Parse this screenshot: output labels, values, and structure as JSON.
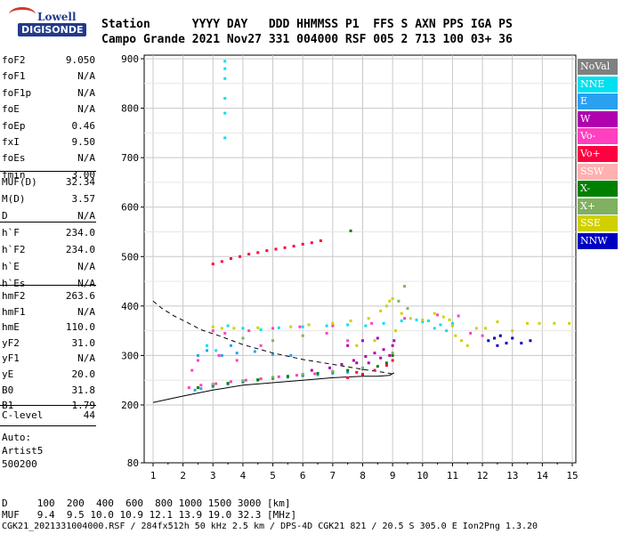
{
  "logo": {
    "line1": "Lowell",
    "line2": "DIGISONDE"
  },
  "header": {
    "row1": "Station      YYYY DAY   DDD HHMMSS P1  FFS S AXN PPS IGA PS",
    "row2": "Campo Grande 2021 Nov27 331 004000 RSF 005 2 713 100 03+ 36"
  },
  "params": {
    "group1": [
      {
        "name": "foF2",
        "value": "9.050"
      },
      {
        "name": "foF1",
        "value": "N/A"
      },
      {
        "name": "foF1p",
        "value": "N/A"
      },
      {
        "name": "foE",
        "value": "N/A"
      },
      {
        "name": "foEp",
        "value": "0.46"
      },
      {
        "name": "fxI",
        "value": "9.50"
      },
      {
        "name": "foEs",
        "value": "N/A"
      },
      {
        "name": "fmin",
        "value": "3.00"
      }
    ],
    "group2": [
      {
        "name": "MUF(D)",
        "value": "32.34"
      },
      {
        "name": "M(D)",
        "value": "3.57"
      },
      {
        "name": "D",
        "value": "N/A"
      }
    ],
    "group3": [
      {
        "name": "h`F",
        "value": "234.0"
      },
      {
        "name": "h`F2",
        "value": "234.0"
      },
      {
        "name": "h`E",
        "value": "N/A"
      },
      {
        "name": "h`Es",
        "value": "N/A"
      }
    ],
    "group4": [
      {
        "name": "hmF2",
        "value": "263.6"
      },
      {
        "name": "hmF1",
        "value": "N/A"
      },
      {
        "name": "hmE",
        "value": "110.0"
      },
      {
        "name": "yF2",
        "value": "31.0"
      },
      {
        "name": "yF1",
        "value": "N/A"
      },
      {
        "name": "yE",
        "value": "20.0"
      },
      {
        "name": "B0",
        "value": "31.8"
      },
      {
        "name": "B1",
        "value": "1.79"
      }
    ],
    "clevel": {
      "name": "C-level",
      "value": "44"
    },
    "auto": [
      "Auto:",
      "Artist5",
      "500200"
    ]
  },
  "legend": [
    {
      "label": "NoVal",
      "color": "#808080"
    },
    {
      "label": "NNE",
      "color": "#00e0f0"
    },
    {
      "label": "E",
      "color": "#2aa0f0"
    },
    {
      "label": "W",
      "color": "#b000b0"
    },
    {
      "label": "Vo-",
      "color": "#ff40c0"
    },
    {
      "label": "Vo+",
      "color": "#ff0040"
    },
    {
      "label": "SSW",
      "color": "#ffb0b0"
    },
    {
      "label": "X-",
      "color": "#008000"
    },
    {
      "label": "X+",
      "color": "#80b060"
    },
    {
      "label": "SSE",
      "color": "#d0d000"
    },
    {
      "label": "NNW",
      "color": "#0000c0"
    }
  ],
  "footer": {
    "row1": "D     100  200  400  600  800 1000 1500 3000 [km]",
    "row2": "MUF   9.4  9.5 10.0 10.9 12.1 13.9 19.0 32.3 [MHz]",
    "row3": "CGK21_2021331004000.RSF / 284fx512h 50 kHz 2.5 km / DPS-4D CGK21 821 / 20.5 S 305.0 E Ion2Png 1.3.20"
  },
  "chart_data": {
    "type": "scatter",
    "x_ticks": [
      1,
      2,
      3,
      4,
      5,
      6,
      7,
      8,
      9,
      10,
      11,
      12,
      13,
      14,
      15
    ],
    "y_ticks": [
      80,
      200,
      300,
      400,
      500,
      600,
      700,
      800,
      900
    ],
    "xlim": [
      0.9,
      15.1
    ],
    "ylim": [
      80,
      905
    ],
    "grid": true,
    "profile_solid": {
      "x": [
        1.0,
        2.0,
        3.0,
        4.0,
        5.0,
        6.0,
        7.0,
        8.0,
        8.5,
        8.9,
        9.05
      ],
      "y": [
        205,
        218,
        230,
        240,
        245,
        250,
        255,
        258,
        258,
        260,
        265
      ]
    },
    "profile_dashed": {
      "x": [
        1.0,
        1.3,
        1.7,
        2.1,
        2.6,
        3.2,
        4.0,
        5.0,
        6.0,
        7.0,
        8.0,
        8.8,
        9.05
      ],
      "y": [
        410,
        395,
        380,
        368,
        352,
        340,
        322,
        305,
        292,
        282,
        272,
        265,
        262
      ]
    },
    "series": [
      {
        "name": "NNE",
        "points": [
          [
            3.5,
            360
          ],
          [
            4.0,
            355
          ],
          [
            4.6,
            352
          ],
          [
            5.2,
            356
          ],
          [
            6.0,
            358
          ],
          [
            6.8,
            360
          ],
          [
            7.5,
            362
          ],
          [
            8.1,
            360
          ],
          [
            8.7,
            365
          ],
          [
            9.3,
            370
          ],
          [
            10.0,
            368
          ],
          [
            10.6,
            362
          ],
          [
            11.0,
            365
          ],
          [
            3.4,
            895
          ],
          [
            3.4,
            880
          ],
          [
            3.4,
            860
          ],
          [
            3.4,
            820
          ],
          [
            3.4,
            790
          ],
          [
            3.4,
            740
          ],
          [
            2.8,
            320
          ],
          [
            3.1,
            310
          ],
          [
            10.4,
            355
          ],
          [
            10.8,
            350
          ],
          [
            9.8,
            372
          ],
          [
            10.2,
            370
          ]
        ]
      },
      {
        "name": "E",
        "points": [
          [
            2.4,
            230
          ],
          [
            2.6,
            233
          ],
          [
            3.0,
            237
          ],
          [
            3.5,
            242
          ],
          [
            4.0,
            246
          ],
          [
            4.5,
            250
          ],
          [
            5.0,
            253
          ],
          [
            5.5,
            256
          ],
          [
            6.0,
            259
          ],
          [
            6.5,
            261
          ],
          [
            7.0,
            264
          ],
          [
            7.5,
            266
          ],
          [
            2.8,
            310
          ],
          [
            3.3,
            300
          ],
          [
            3.8,
            305
          ],
          [
            4.4,
            308
          ],
          [
            5.0,
            302
          ],
          [
            2.5,
            300
          ],
          [
            3.6,
            320
          ],
          [
            5.6,
            300
          ]
        ]
      },
      {
        "name": "W",
        "points": [
          [
            6.9,
            275
          ],
          [
            7.3,
            282
          ],
          [
            7.7,
            290
          ],
          [
            8.1,
            298
          ],
          [
            8.4,
            305
          ],
          [
            8.7,
            312
          ],
          [
            9.0,
            320
          ],
          [
            8.2,
            285
          ],
          [
            8.6,
            295
          ],
          [
            8.9,
            300
          ],
          [
            7.8,
            285
          ],
          [
            6.3,
            270
          ],
          [
            9.05,
            330
          ],
          [
            8.5,
            335
          ],
          [
            8.0,
            330
          ],
          [
            7.5,
            320
          ]
        ]
      },
      {
        "name": "Vo-",
        "points": [
          [
            2.2,
            235
          ],
          [
            2.6,
            240
          ],
          [
            3.1,
            243
          ],
          [
            3.6,
            247
          ],
          [
            4.1,
            250
          ],
          [
            4.6,
            253
          ],
          [
            5.2,
            257
          ],
          [
            5.8,
            260
          ],
          [
            6.4,
            263
          ],
          [
            2.3,
            270
          ],
          [
            2.5,
            290
          ],
          [
            3.0,
            350
          ],
          [
            3.4,
            345
          ],
          [
            4.2,
            350
          ],
          [
            5.0,
            355
          ],
          [
            5.9,
            358
          ],
          [
            7.0,
            360
          ],
          [
            8.3,
            365
          ],
          [
            9.4,
            375
          ],
          [
            10.5,
            382
          ],
          [
            11.2,
            380
          ],
          [
            11.6,
            345
          ],
          [
            12.0,
            340
          ],
          [
            3.2,
            300
          ],
          [
            3.8,
            290
          ],
          [
            4.6,
            320
          ],
          [
            7.5,
            330
          ],
          [
            6.8,
            345
          ]
        ]
      },
      {
        "name": "Vo+",
        "points": [
          [
            3.0,
            485
          ],
          [
            3.3,
            490
          ],
          [
            3.6,
            496
          ],
          [
            3.9,
            500
          ],
          [
            4.2,
            505
          ],
          [
            4.5,
            508
          ],
          [
            4.8,
            512
          ],
          [
            5.1,
            515
          ],
          [
            5.4,
            518
          ],
          [
            5.7,
            521
          ],
          [
            6.0,
            525
          ],
          [
            6.3,
            528
          ],
          [
            6.6,
            532
          ],
          [
            7.5,
            255
          ],
          [
            8.0,
            262
          ],
          [
            8.4,
            270
          ],
          [
            8.8,
            280
          ],
          [
            9.0,
            290
          ],
          [
            7.8,
            266
          ]
        ]
      },
      {
        "name": "X-",
        "points": [
          [
            2.5,
            235
          ],
          [
            3.0,
            240
          ],
          [
            3.5,
            244
          ],
          [
            4.0,
            248
          ],
          [
            4.5,
            251
          ],
          [
            5.0,
            255
          ],
          [
            5.5,
            258
          ],
          [
            6.0,
            261
          ],
          [
            6.5,
            264
          ],
          [
            7.0,
            267
          ],
          [
            7.5,
            270
          ],
          [
            8.0,
            273
          ],
          [
            8.5,
            278
          ],
          [
            8.8,
            285
          ],
          [
            9.0,
            300
          ],
          [
            7.6,
            552
          ]
        ]
      },
      {
        "name": "X+",
        "points": [
          [
            3.0,
            242
          ],
          [
            4.0,
            249
          ],
          [
            5.0,
            256
          ],
          [
            6.0,
            262
          ],
          [
            7.0,
            268
          ],
          [
            8.0,
            275
          ],
          [
            9.0,
            305
          ],
          [
            9.2,
            410
          ],
          [
            9.4,
            440
          ],
          [
            9.5,
            395
          ],
          [
            5.0,
            330
          ],
          [
            6.0,
            340
          ],
          [
            4.0,
            335
          ]
        ]
      },
      {
        "name": "SSE",
        "points": [
          [
            3.0,
            358
          ],
          [
            3.3,
            355
          ],
          [
            3.7,
            355
          ],
          [
            4.5,
            356
          ],
          [
            5.6,
            358
          ],
          [
            6.2,
            362
          ],
          [
            7.0,
            365
          ],
          [
            7.6,
            370
          ],
          [
            8.2,
            375
          ],
          [
            8.6,
            390
          ],
          [
            8.8,
            400
          ],
          [
            8.9,
            410
          ],
          [
            9.0,
            415
          ],
          [
            9.3,
            385
          ],
          [
            9.6,
            375
          ],
          [
            10.0,
            372
          ],
          [
            10.4,
            385
          ],
          [
            10.7,
            378
          ],
          [
            11.0,
            360
          ],
          [
            11.3,
            330
          ],
          [
            11.5,
            320
          ],
          [
            11.8,
            355
          ],
          [
            12.1,
            355
          ],
          [
            12.5,
            368
          ],
          [
            13.0,
            350
          ],
          [
            13.5,
            365
          ],
          [
            13.9,
            365
          ],
          [
            14.4,
            365
          ],
          [
            14.9,
            365
          ],
          [
            12.6,
            340
          ],
          [
            9.1,
            350
          ],
          [
            8.4,
            330
          ],
          [
            7.8,
            320
          ],
          [
            10.9,
            372
          ],
          [
            11.1,
            340
          ]
        ]
      },
      {
        "name": "NNW",
        "points": [
          [
            12.2,
            330
          ],
          [
            12.4,
            335
          ],
          [
            12.6,
            340
          ],
          [
            12.8,
            325
          ],
          [
            13.0,
            335
          ],
          [
            13.3,
            325
          ],
          [
            12.5,
            320
          ],
          [
            13.6,
            330
          ]
        ]
      }
    ]
  }
}
